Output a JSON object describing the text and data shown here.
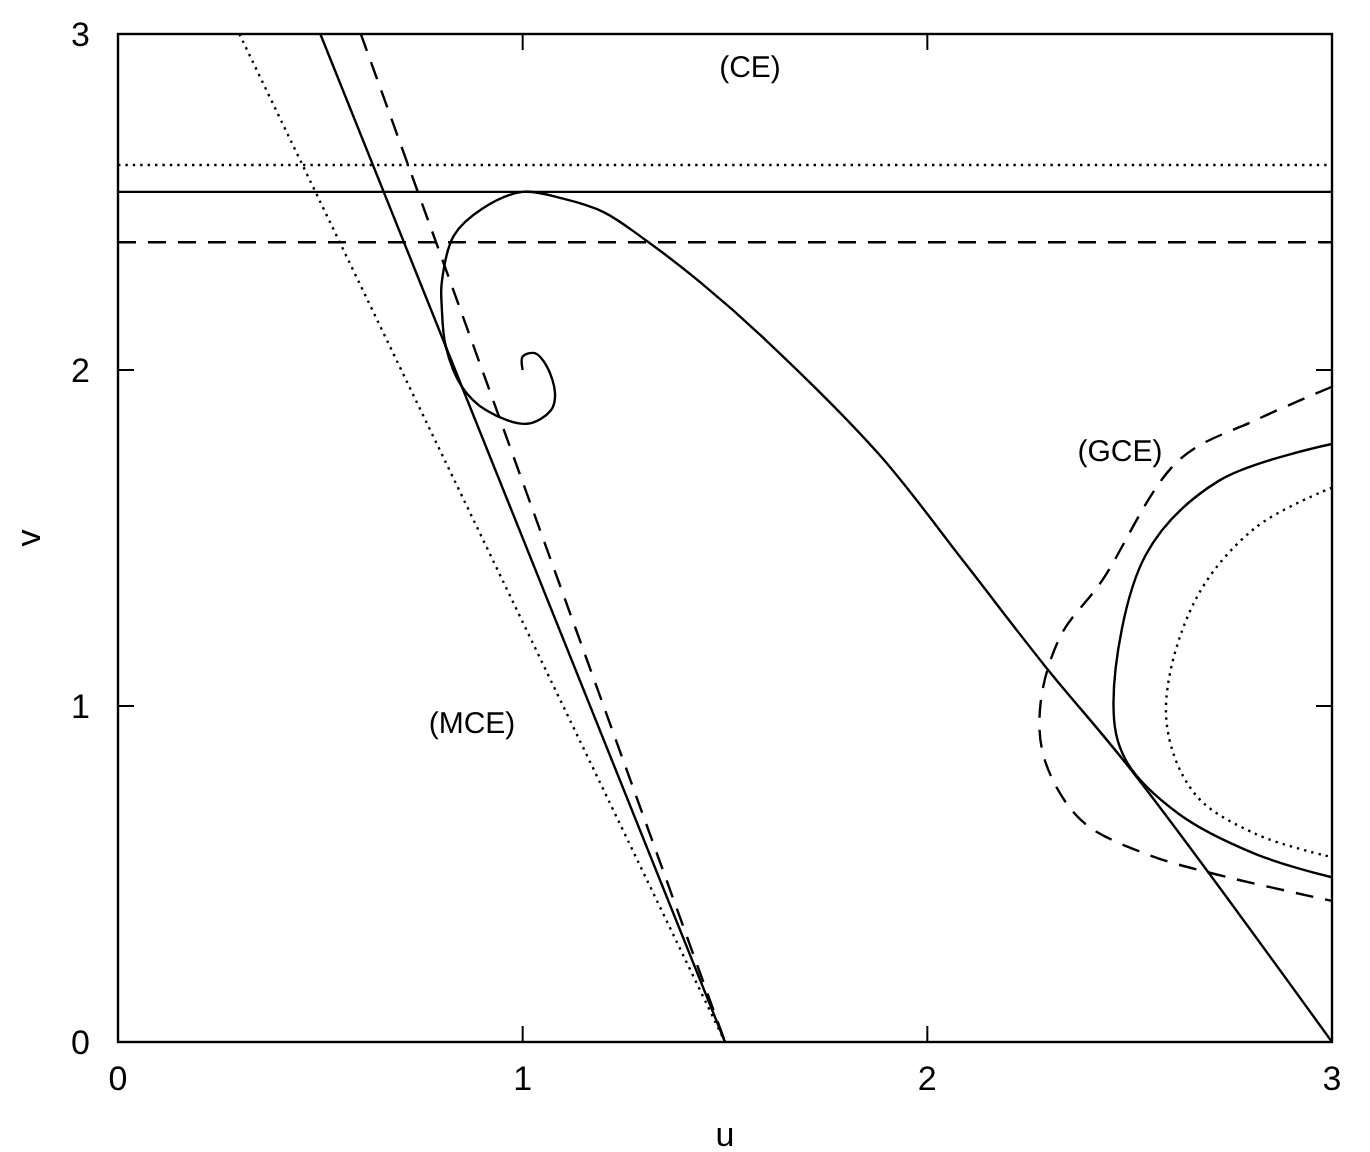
{
  "chart_data": {
    "type": "line",
    "xlabel": "u",
    "ylabel": "v",
    "xlim": [
      0,
      3
    ],
    "ylim": [
      0,
      3
    ],
    "xticks": [
      0,
      1,
      2,
      3
    ],
    "yticks": [
      0,
      1,
      2,
      3
    ],
    "grid": false,
    "marker": "none",
    "annotations": [
      "(CE)",
      "(GCE)",
      "(MCE)"
    ],
    "series": [
      {
        "color": "#000000",
        "line_style": "dotted",
        "x": [
          0,
          3
        ],
        "values": [
          2.61,
          2.61
        ]
      },
      {
        "color": "#000000",
        "line_style": "solid",
        "x": [
          0,
          3
        ],
        "values": [
          2.53,
          2.53
        ]
      },
      {
        "color": "#000000",
        "line_style": "dashed",
        "x": [
          0,
          3
        ],
        "values": [
          2.38,
          2.38
        ]
      },
      {
        "color": "#000000",
        "line_style": "dotted",
        "x": [
          0.3,
          1.5
        ],
        "values": [
          3,
          0
        ]
      },
      {
        "color": "#000000",
        "line_style": "solid",
        "x": [
          0.5,
          1.5
        ],
        "values": [
          3,
          0
        ]
      },
      {
        "color": "#000000",
        "line_style": "dashed",
        "x": [
          0.6,
          1.5
        ],
        "values": [
          3,
          0
        ]
      },
      {
        "color": "#000000",
        "line_style": "solid",
        "x": [
          3,
          2.51,
          2.29,
          2.09,
          1.88,
          1.6,
          1.44,
          1.3,
          1.2,
          1.1,
          1.0,
          0.9,
          0.83,
          0.8,
          0.8,
          0.81,
          0.85,
          0.91,
          1.01,
          1.07,
          1.08,
          1.06,
          1.03,
          1.0,
          1.0
        ],
        "values": [
          0,
          0.8,
          1.12,
          1.43,
          1.75,
          2.09,
          2.26,
          2.39,
          2.47,
          2.51,
          2.53,
          2.48,
          2.4,
          2.26,
          2.19,
          2.07,
          1.95,
          1.88,
          1.84,
          1.88,
          1.93,
          2.01,
          2.05,
          2.04,
          2.0
        ]
      },
      {
        "color": "#000000",
        "line_style": "dashed",
        "x": [
          3.0,
          2.81,
          2.62,
          2.43,
          2.33,
          2.28,
          2.29,
          2.38,
          2.54,
          2.71,
          3.0
        ],
        "values": [
          1.95,
          1.85,
          1.73,
          1.37,
          1.21,
          1.01,
          0.84,
          0.66,
          0.56,
          0.5,
          0.42
        ]
      },
      {
        "color": "#000000",
        "line_style": "solid",
        "x": [
          3.0,
          2.72,
          2.54,
          2.46,
          2.49,
          2.62,
          2.81,
          3.0
        ],
        "values": [
          1.78,
          1.67,
          1.45,
          1.01,
          0.84,
          0.68,
          0.56,
          0.49
        ]
      },
      {
        "color": "#000000",
        "line_style": "dotted",
        "x": [
          3.0,
          2.81,
          2.66,
          2.59,
          2.66,
          2.81,
          3.0
        ],
        "values": [
          1.65,
          1.53,
          1.31,
          0.97,
          0.74,
          0.62,
          0.55
        ]
      }
    ]
  }
}
